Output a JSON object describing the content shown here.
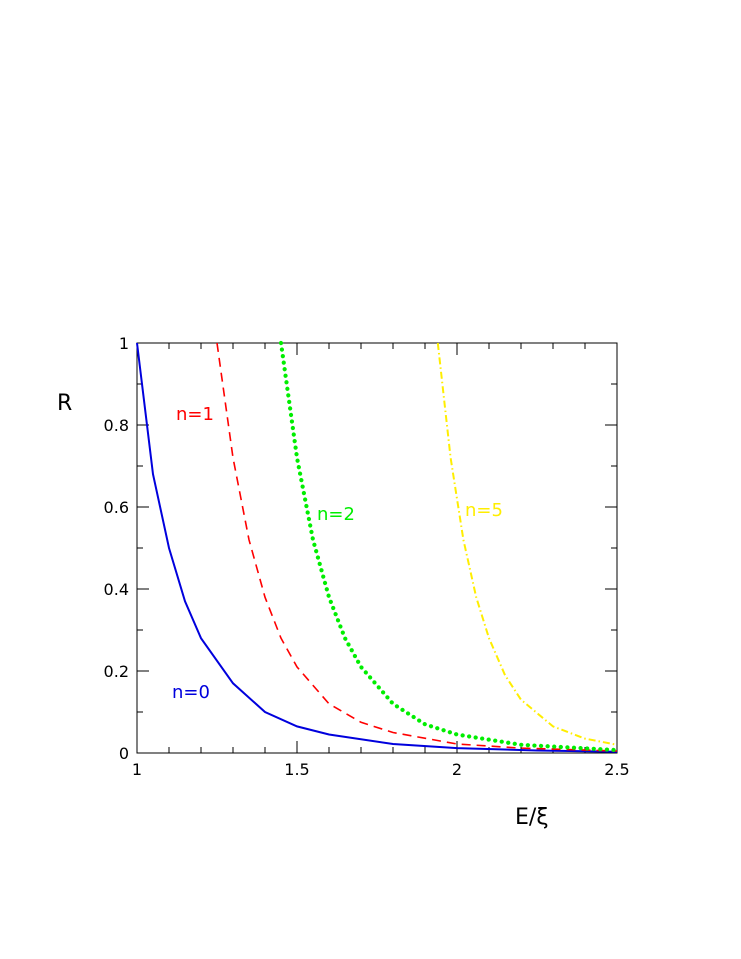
{
  "chart_data": {
    "type": "line",
    "xlabel": "E/ξ",
    "ylabel": "R",
    "xlim": [
      1,
      2.5
    ],
    "ylim": [
      0,
      1
    ],
    "x_ticks": [
      "1",
      "1.5",
      "2",
      "2.5"
    ],
    "y_ticks": [
      "0",
      "0.2",
      "0.4",
      "0.6",
      "0.8",
      "1"
    ],
    "grid": false,
    "series": [
      {
        "name": "n=0",
        "color": "#0000dd",
        "style": "solid",
        "x": [
          1.0,
          1.05,
          1.1,
          1.15,
          1.2,
          1.3,
          1.4,
          1.5,
          1.6,
          1.8,
          2.0,
          2.25,
          2.5
        ],
        "y": [
          1.0,
          0.68,
          0.5,
          0.37,
          0.28,
          0.17,
          0.1,
          0.065,
          0.045,
          0.022,
          0.012,
          0.006,
          0.003
        ]
      },
      {
        "name": "n=1",
        "color": "#ff0000",
        "style": "dashed",
        "x": [
          1.25,
          1.3,
          1.35,
          1.4,
          1.45,
          1.5,
          1.6,
          1.7,
          1.8,
          2.0,
          2.2,
          2.5
        ],
        "y": [
          1.0,
          0.72,
          0.52,
          0.38,
          0.28,
          0.21,
          0.12,
          0.075,
          0.05,
          0.022,
          0.012,
          0.005
        ]
      },
      {
        "name": "n=2",
        "color": "#00ee00",
        "style": "dotted",
        "x": [
          1.45,
          1.5,
          1.55,
          1.6,
          1.65,
          1.7,
          1.8,
          1.9,
          2.0,
          2.2,
          2.5
        ],
        "y": [
          1.0,
          0.72,
          0.52,
          0.38,
          0.28,
          0.21,
          0.12,
          0.07,
          0.045,
          0.02,
          0.007
        ]
      },
      {
        "name": "n=5",
        "color": "#ffee00",
        "style": "dashdot",
        "x": [
          1.94,
          1.98,
          2.02,
          2.06,
          2.1,
          2.15,
          2.2,
          2.3,
          2.4,
          2.5
        ],
        "y": [
          1.0,
          0.72,
          0.52,
          0.38,
          0.28,
          0.19,
          0.13,
          0.065,
          0.035,
          0.02
        ]
      }
    ]
  }
}
